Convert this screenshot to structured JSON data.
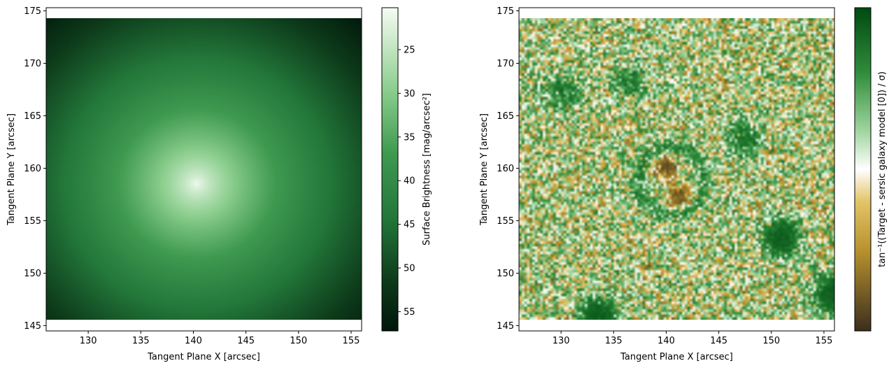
{
  "chart_data": [
    {
      "type": "heatmap",
      "title": "",
      "xlabel": "Tangent Plane X [arcsec]",
      "ylabel": "Tangent Plane Y [arcsec]",
      "xlim": [
        126,
        156
      ],
      "ylim": [
        144.5,
        175.3
      ],
      "image_extent": {
        "x": [
          126,
          156
        ],
        "y": [
          145.5,
          174.3
        ]
      },
      "xticks": [
        130,
        135,
        140,
        145,
        150,
        155
      ],
      "yticks": [
        145,
        150,
        155,
        160,
        165,
        170,
        175
      ],
      "model": {
        "center": [
          140.3,
          158.5
        ],
        "ellipticity_note": "smooth Sersic profile, bright center fading to dark corners"
      },
      "colormap": "Greens_r",
      "colorbar": {
        "label": "Surface Brightness [mag/arcsec²]",
        "range": [
          57.2,
          20.2
        ],
        "ticks": [
          25,
          30,
          35,
          40,
          45,
          50,
          55
        ],
        "inverted": true
      }
    },
    {
      "type": "heatmap",
      "title": "",
      "xlabel": "Tangent Plane X [arcsec]",
      "ylabel": "Tangent Plane Y [arcsec]",
      "xlim": [
        126,
        156
      ],
      "ylim": [
        144.5,
        175.3
      ],
      "image_extent": {
        "x": [
          126,
          156
        ],
        "y": [
          145.5,
          174.3
        ]
      },
      "xticks": [
        130,
        135,
        140,
        145,
        150,
        155
      ],
      "yticks": [
        145,
        150,
        155,
        160,
        165,
        170,
        175
      ],
      "features": [
        {
          "kind": "negative",
          "x": 140.0,
          "y": 160.1,
          "strength": 1.0
        },
        {
          "kind": "negative",
          "x": 141.2,
          "y": 157.2,
          "strength": 0.9
        },
        {
          "kind": "positive",
          "x": 151.0,
          "y": 153.3,
          "strength": 1.0
        },
        {
          "kind": "positive",
          "x": 133.5,
          "y": 146.0,
          "strength": 1.0
        },
        {
          "kind": "positive",
          "x": 155.8,
          "y": 148.0,
          "strength": 1.0
        },
        {
          "kind": "positive",
          "x": 147.5,
          "y": 163.0,
          "strength": 0.5
        },
        {
          "kind": "positive",
          "x": 130.2,
          "y": 167.3,
          "strength": 0.5
        },
        {
          "kind": "positive",
          "x": 136.5,
          "y": 168.0,
          "strength": 0.4
        },
        {
          "kind": "ring",
          "x": 140.5,
          "y": 158.8,
          "strength": 0.6
        }
      ],
      "colormap": "BrBG-like (brown to white to green)",
      "colorbar": {
        "label": "tan⁻¹((Target - sersic galaxy model [0]) / σ)",
        "ticks": [],
        "colors": [
          "#3d2f1a",
          "#d8b448",
          "#ffffff",
          "#2e8a3a",
          "#00430f"
        ]
      }
    }
  ]
}
